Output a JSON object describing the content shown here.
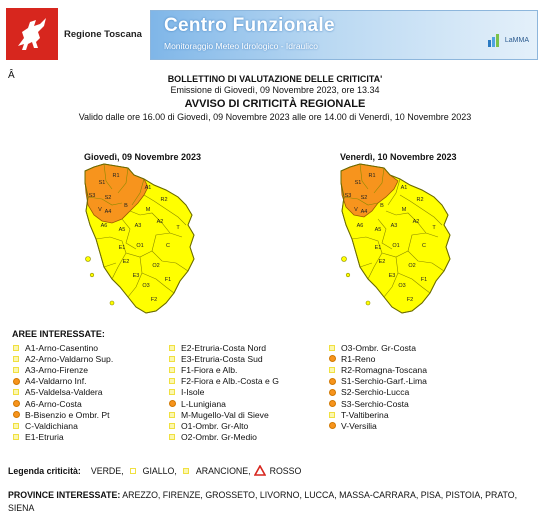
{
  "header": {
    "region_name": "Regione Toscana",
    "banner_title": "Centro Funzionale",
    "banner_subtitle": "Monitoraggio Meteo Idrologico - Idraulico",
    "banner_logo": "LaMMA"
  },
  "stray_char": "Â",
  "bulletin": {
    "title": "BOLLETTINO DI VALUTAZIONE DELLE CRITICITA'",
    "issued": "Emissione di Giovedì, 09 Novembre 2023, ore 13.34",
    "notice_title": "AVVISO DI CRITICITÀ REGIONALE",
    "validity": "Valido dalle ore 16.00 di Giovedì, 09 Novembre 2023 alle ore 14.00 di Venerdì, 10 Novembre 2023"
  },
  "maps": [
    {
      "title": "Giovedì, 09 Novembre 2023",
      "labels": [
        "R1",
        "S1",
        "S3",
        "S2",
        "V",
        "A4",
        "B",
        "A1",
        "M",
        "A2",
        "A3",
        "A5",
        "E1",
        "O1",
        "E2",
        "E3",
        "C",
        "O2",
        "O3",
        "R2",
        "A6",
        "T",
        "F1",
        "F2"
      ]
    },
    {
      "title": "Venerdì, 10 Novembre 2023",
      "labels": [
        "R1",
        "S1",
        "S3",
        "S2",
        "V",
        "A4",
        "B",
        "A1",
        "M",
        "A2",
        "A3",
        "A5",
        "E1",
        "O1",
        "E2",
        "E3",
        "C",
        "O2",
        "O3",
        "R2",
        "A6",
        "T",
        "F1",
        "F2"
      ]
    }
  ],
  "areas_title": "AREE INTERESSATE:",
  "areas": [
    [
      {
        "label": "A1-Arno-Casentino",
        "level": "giallo"
      },
      {
        "label": "A2-Arno-Valdarno Sup.",
        "level": "giallo"
      },
      {
        "label": "A3-Arno-Firenze",
        "level": "giallo"
      },
      {
        "label": "A4-Valdarno Inf.",
        "level": "arancione"
      },
      {
        "label": "A5-Valdelsa-Valdera",
        "level": "giallo"
      },
      {
        "label": "A6-Arno-Costa",
        "level": "arancione"
      },
      {
        "label": "B-Bisenzio e Ombr. Pt",
        "level": "arancione"
      },
      {
        "label": "C-Valdichiana",
        "level": "giallo"
      },
      {
        "label": "E1-Etruria",
        "level": "giallo"
      }
    ],
    [
      {
        "label": "E2-Etruria-Costa Nord",
        "level": "giallo"
      },
      {
        "label": "E3-Etruria-Costa Sud",
        "level": "giallo"
      },
      {
        "label": "F1-Fiora e Alb.",
        "level": "giallo"
      },
      {
        "label": "F2-Fiora e Alb.-Costa e G",
        "level": "giallo"
      },
      {
        "label": "I-Isole",
        "level": "giallo"
      },
      {
        "label": "L-Lunigiana",
        "level": "arancione"
      },
      {
        "label": "M-Mugello-Val di Sieve",
        "level": "giallo"
      },
      {
        "label": "O1-Ombr. Gr-Alto",
        "level": "giallo"
      },
      {
        "label": "O2-Ombr. Gr-Medio",
        "level": "giallo"
      }
    ],
    [
      {
        "label": "O3-Ombr. Gr-Costa",
        "level": "giallo"
      },
      {
        "label": "R1-Reno",
        "level": "arancione"
      },
      {
        "label": "R2-Romagna-Toscana",
        "level": "giallo"
      },
      {
        "label": "S1-Serchio-Garf.-Lima",
        "level": "arancione"
      },
      {
        "label": "S2-Serchio-Lucca",
        "level": "arancione"
      },
      {
        "label": "S3-Serchio-Costa",
        "level": "arancione"
      },
      {
        "label": "T-Valtiberina",
        "level": "giallo"
      },
      {
        "label": "V-Versilia",
        "level": "arancione"
      }
    ]
  ],
  "legend": {
    "label": "Legenda criticità:",
    "items": [
      "VERDE,",
      "GIALLO,",
      "ARANCIONE,",
      "ROSSO"
    ]
  },
  "provinces": {
    "label": "PROVINCE INTERESSATE:",
    "list": "AREZZO, FIRENZE, GROSSETO, LIVORNO, LUCCA, MASSA-CARRARA, PISA, PISTOIA, PRATO, SIENA"
  },
  "colors": {
    "giallo": "#ffff00",
    "arancione": "#f7941d",
    "border": "#8a8a00",
    "banner": "#7fb6e8",
    "logo_red": "#d7261e"
  }
}
